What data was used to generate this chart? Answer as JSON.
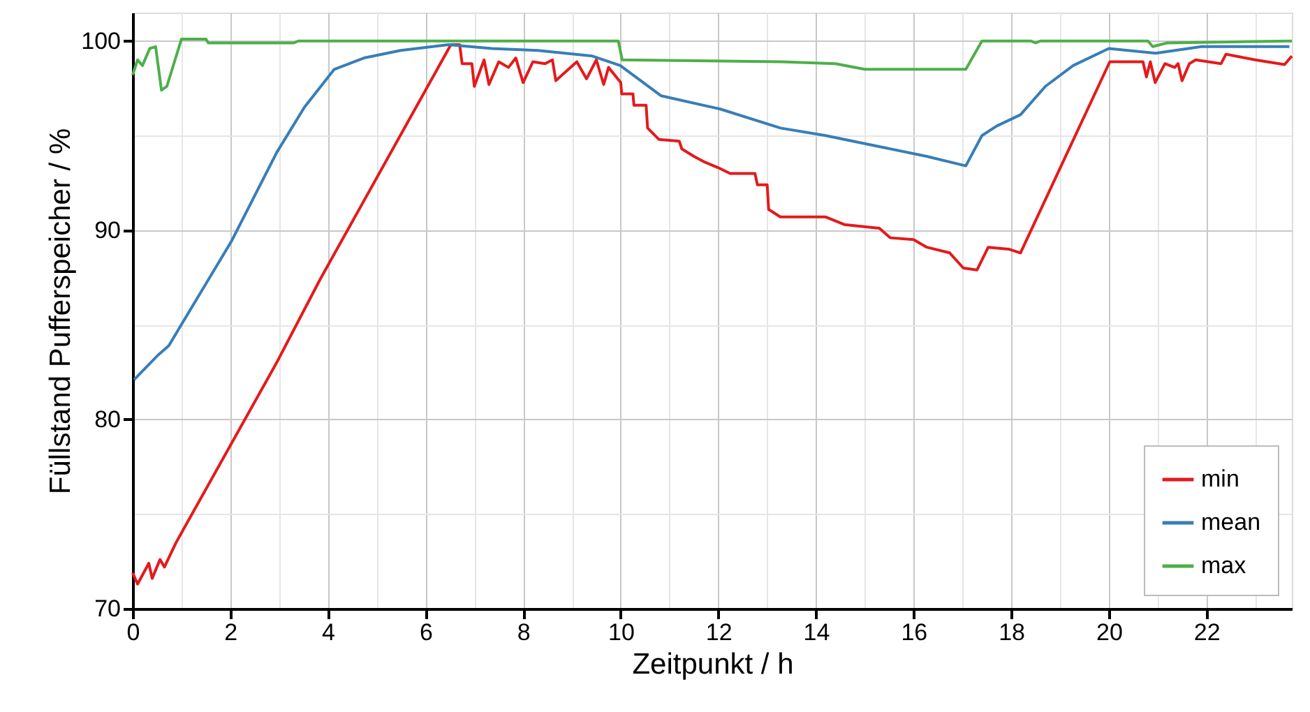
{
  "chart_data": {
    "type": "line",
    "xlabel": "Zeitpunkt / h",
    "ylabel": "Füllstand Pufferspeicher / %",
    "xlim": [
      0,
      23.75
    ],
    "ylim": [
      70,
      101.5
    ],
    "xticks": [
      0,
      {
        "value": 1,
        "label": null
      },
      2,
      {
        "value": 3,
        "label": null
      },
      4,
      {
        "value": 5,
        "label": null
      },
      6,
      {
        "value": 7,
        "label": null
      },
      8,
      {
        "value": 9,
        "label": null
      },
      10,
      {
        "value": 11,
        "label": null
      },
      12,
      {
        "value": 13,
        "label": null
      },
      14,
      {
        "value": 15,
        "label": null
      },
      16,
      {
        "value": 17,
        "label": null
      },
      18,
      {
        "value": 19,
        "label": null
      },
      20,
      {
        "value": 21,
        "label": null
      },
      22,
      {
        "value": 23,
        "label": null
      }
    ],
    "yticks": [
      70,
      {
        "value": 75,
        "label": null
      },
      80,
      {
        "value": 85,
        "label": null
      },
      90,
      {
        "value": 95,
        "label": null
      },
      100
    ],
    "grid": true,
    "legend": "bottom right",
    "marker": "none",
    "line_style": "solid",
    "series": [
      {
        "name": "min",
        "color": "#e41a1c",
        "x": [
          0.0,
          0.1,
          0.33,
          0.4,
          0.56,
          0.65,
          0.89,
          2.95,
          3.84,
          6.52,
          6.7,
          6.75,
          6.95,
          7.0,
          7.2,
          7.3,
          7.5,
          7.7,
          7.85,
          8.0,
          8.2,
          8.45,
          8.6,
          8.67,
          9.1,
          9.3,
          9.5,
          9.65,
          9.75,
          10.0,
          10.02,
          10.25,
          10.27,
          10.52,
          10.55,
          10.78,
          11.2,
          11.25,
          11.5,
          11.72,
          12.0,
          12.24,
          12.75,
          12.8,
          13.0,
          13.03,
          13.27,
          14.2,
          14.58,
          15.3,
          15.52,
          16.0,
          16.27,
          16.74,
          17.02,
          17.3,
          17.53,
          17.95,
          18.19,
          20.02,
          20.7,
          20.77,
          20.85,
          20.95,
          21.15,
          21.35,
          21.42,
          21.5,
          21.65,
          21.78,
          22.3,
          22.4,
          23.0,
          23.6,
          23.75
        ],
        "values": [
          71.9,
          71.3,
          72.4,
          71.6,
          72.6,
          72.2,
          73.5,
          83.0,
          87.4,
          99.8,
          99.8,
          98.8,
          98.8,
          97.6,
          99.0,
          97.7,
          98.9,
          98.6,
          99.1,
          97.8,
          98.9,
          98.8,
          99.0,
          97.9,
          98.9,
          98.0,
          99.0,
          97.7,
          98.6,
          97.8,
          97.2,
          97.2,
          96.6,
          96.6,
          95.4,
          94.8,
          94.7,
          94.3,
          93.9,
          93.6,
          93.3,
          93.0,
          93.0,
          92.4,
          92.4,
          91.1,
          90.7,
          90.7,
          90.3,
          90.1,
          89.6,
          89.5,
          89.1,
          88.8,
          88.0,
          87.9,
          89.1,
          89.0,
          88.8,
          98.9,
          98.9,
          98.1,
          98.9,
          97.8,
          98.8,
          98.6,
          98.8,
          97.9,
          98.8,
          99.0,
          98.8,
          99.3,
          99.0,
          98.75,
          99.2
        ]
      },
      {
        "name": "mean",
        "color": "#377eb8",
        "x": [
          0.03,
          0.52,
          0.74,
          2.02,
          2.95,
          3.52,
          4.13,
          4.74,
          5.49,
          6.47,
          7.36,
          8.3,
          9.42,
          9.99,
          10.83,
          12.04,
          13.27,
          14.2,
          15.33,
          16.27,
          17.07,
          17.4,
          17.7,
          18.19,
          18.7,
          19.27,
          20.0,
          20.96,
          21.9,
          23.7
        ],
        "values": [
          82.1,
          83.4,
          83.9,
          89.4,
          94.1,
          96.5,
          98.5,
          99.1,
          99.5,
          99.8,
          99.6,
          99.5,
          99.2,
          98.7,
          97.1,
          96.4,
          95.4,
          95.0,
          94.4,
          93.9,
          93.4,
          95.0,
          95.5,
          96.1,
          97.6,
          98.7,
          99.6,
          99.35,
          99.7,
          99.7
        ]
      },
      {
        "name": "max",
        "color": "#4daf4a",
        "x": [
          0.0,
          0.1,
          0.2,
          0.35,
          0.47,
          0.59,
          0.7,
          1.0,
          1.5,
          1.55,
          3.3,
          3.4,
          9.95,
          10.03,
          13.3,
          14.4,
          15.0,
          17.07,
          17.4,
          18.4,
          18.5,
          18.6,
          20.8,
          20.9,
          21.2,
          23.75
        ],
        "values": [
          98.2,
          99.0,
          98.7,
          99.6,
          99.7,
          97.4,
          97.6,
          100.1,
          100.1,
          99.9,
          99.9,
          100.0,
          100.0,
          99.0,
          98.9,
          98.8,
          98.5,
          98.5,
          100.0,
          100.0,
          99.9,
          100.0,
          100.0,
          99.7,
          99.9,
          100.0
        ]
      }
    ]
  }
}
